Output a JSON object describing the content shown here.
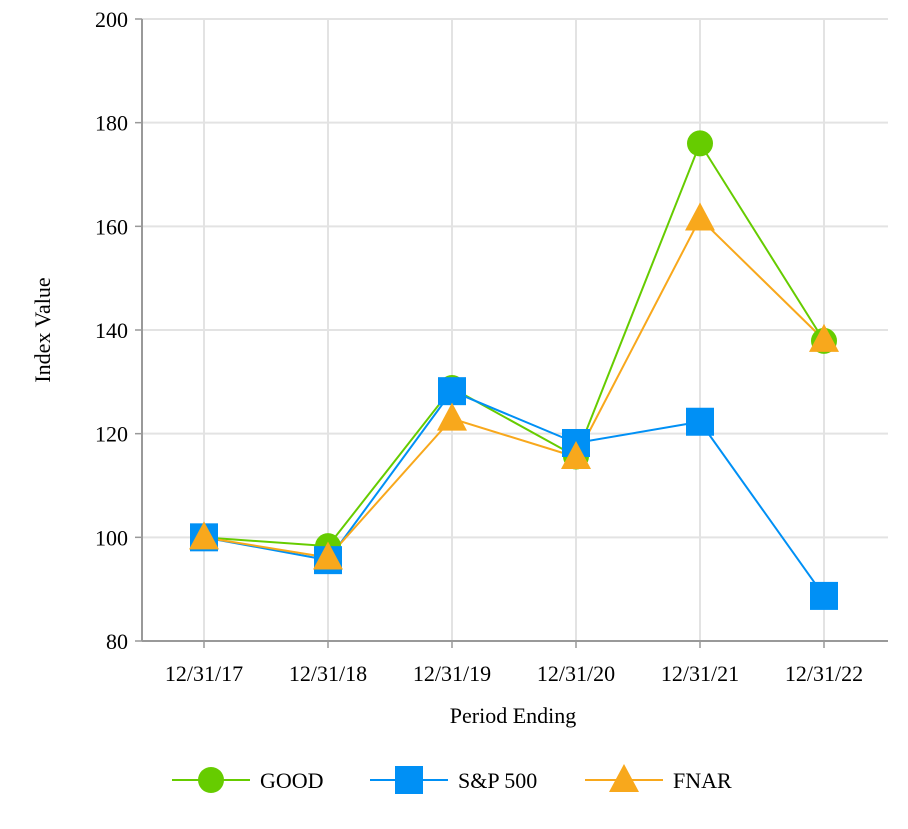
{
  "chart_data": {
    "type": "line",
    "categories": [
      "12/31/17",
      "12/31/18",
      "12/31/19",
      "12/31/20",
      "12/31/21",
      "12/31/22"
    ],
    "series": [
      {
        "name": "GOOD",
        "values": [
          100,
          98.3,
          128.8,
          115.6,
          176.0,
          137.9
        ],
        "color": "#66cc00",
        "marker": "circle"
      },
      {
        "name": "S&P 500",
        "values": [
          100,
          95.6,
          128.2,
          118.2,
          122.3,
          88.7
        ],
        "color": "#0090f5",
        "marker": "square"
      },
      {
        "name": "FNAR",
        "values": [
          100,
          96.1,
          122.9,
          115.5,
          161.5,
          138.1
        ],
        "color": "#f8a81c",
        "marker": "triangle"
      }
    ],
    "xlabel": "Period Ending",
    "ylabel": "Index Value",
    "ylim": [
      80,
      200
    ],
    "yticks": [
      80,
      100,
      120,
      140,
      160,
      180,
      200
    ],
    "grid": true,
    "legend": "bottom"
  }
}
